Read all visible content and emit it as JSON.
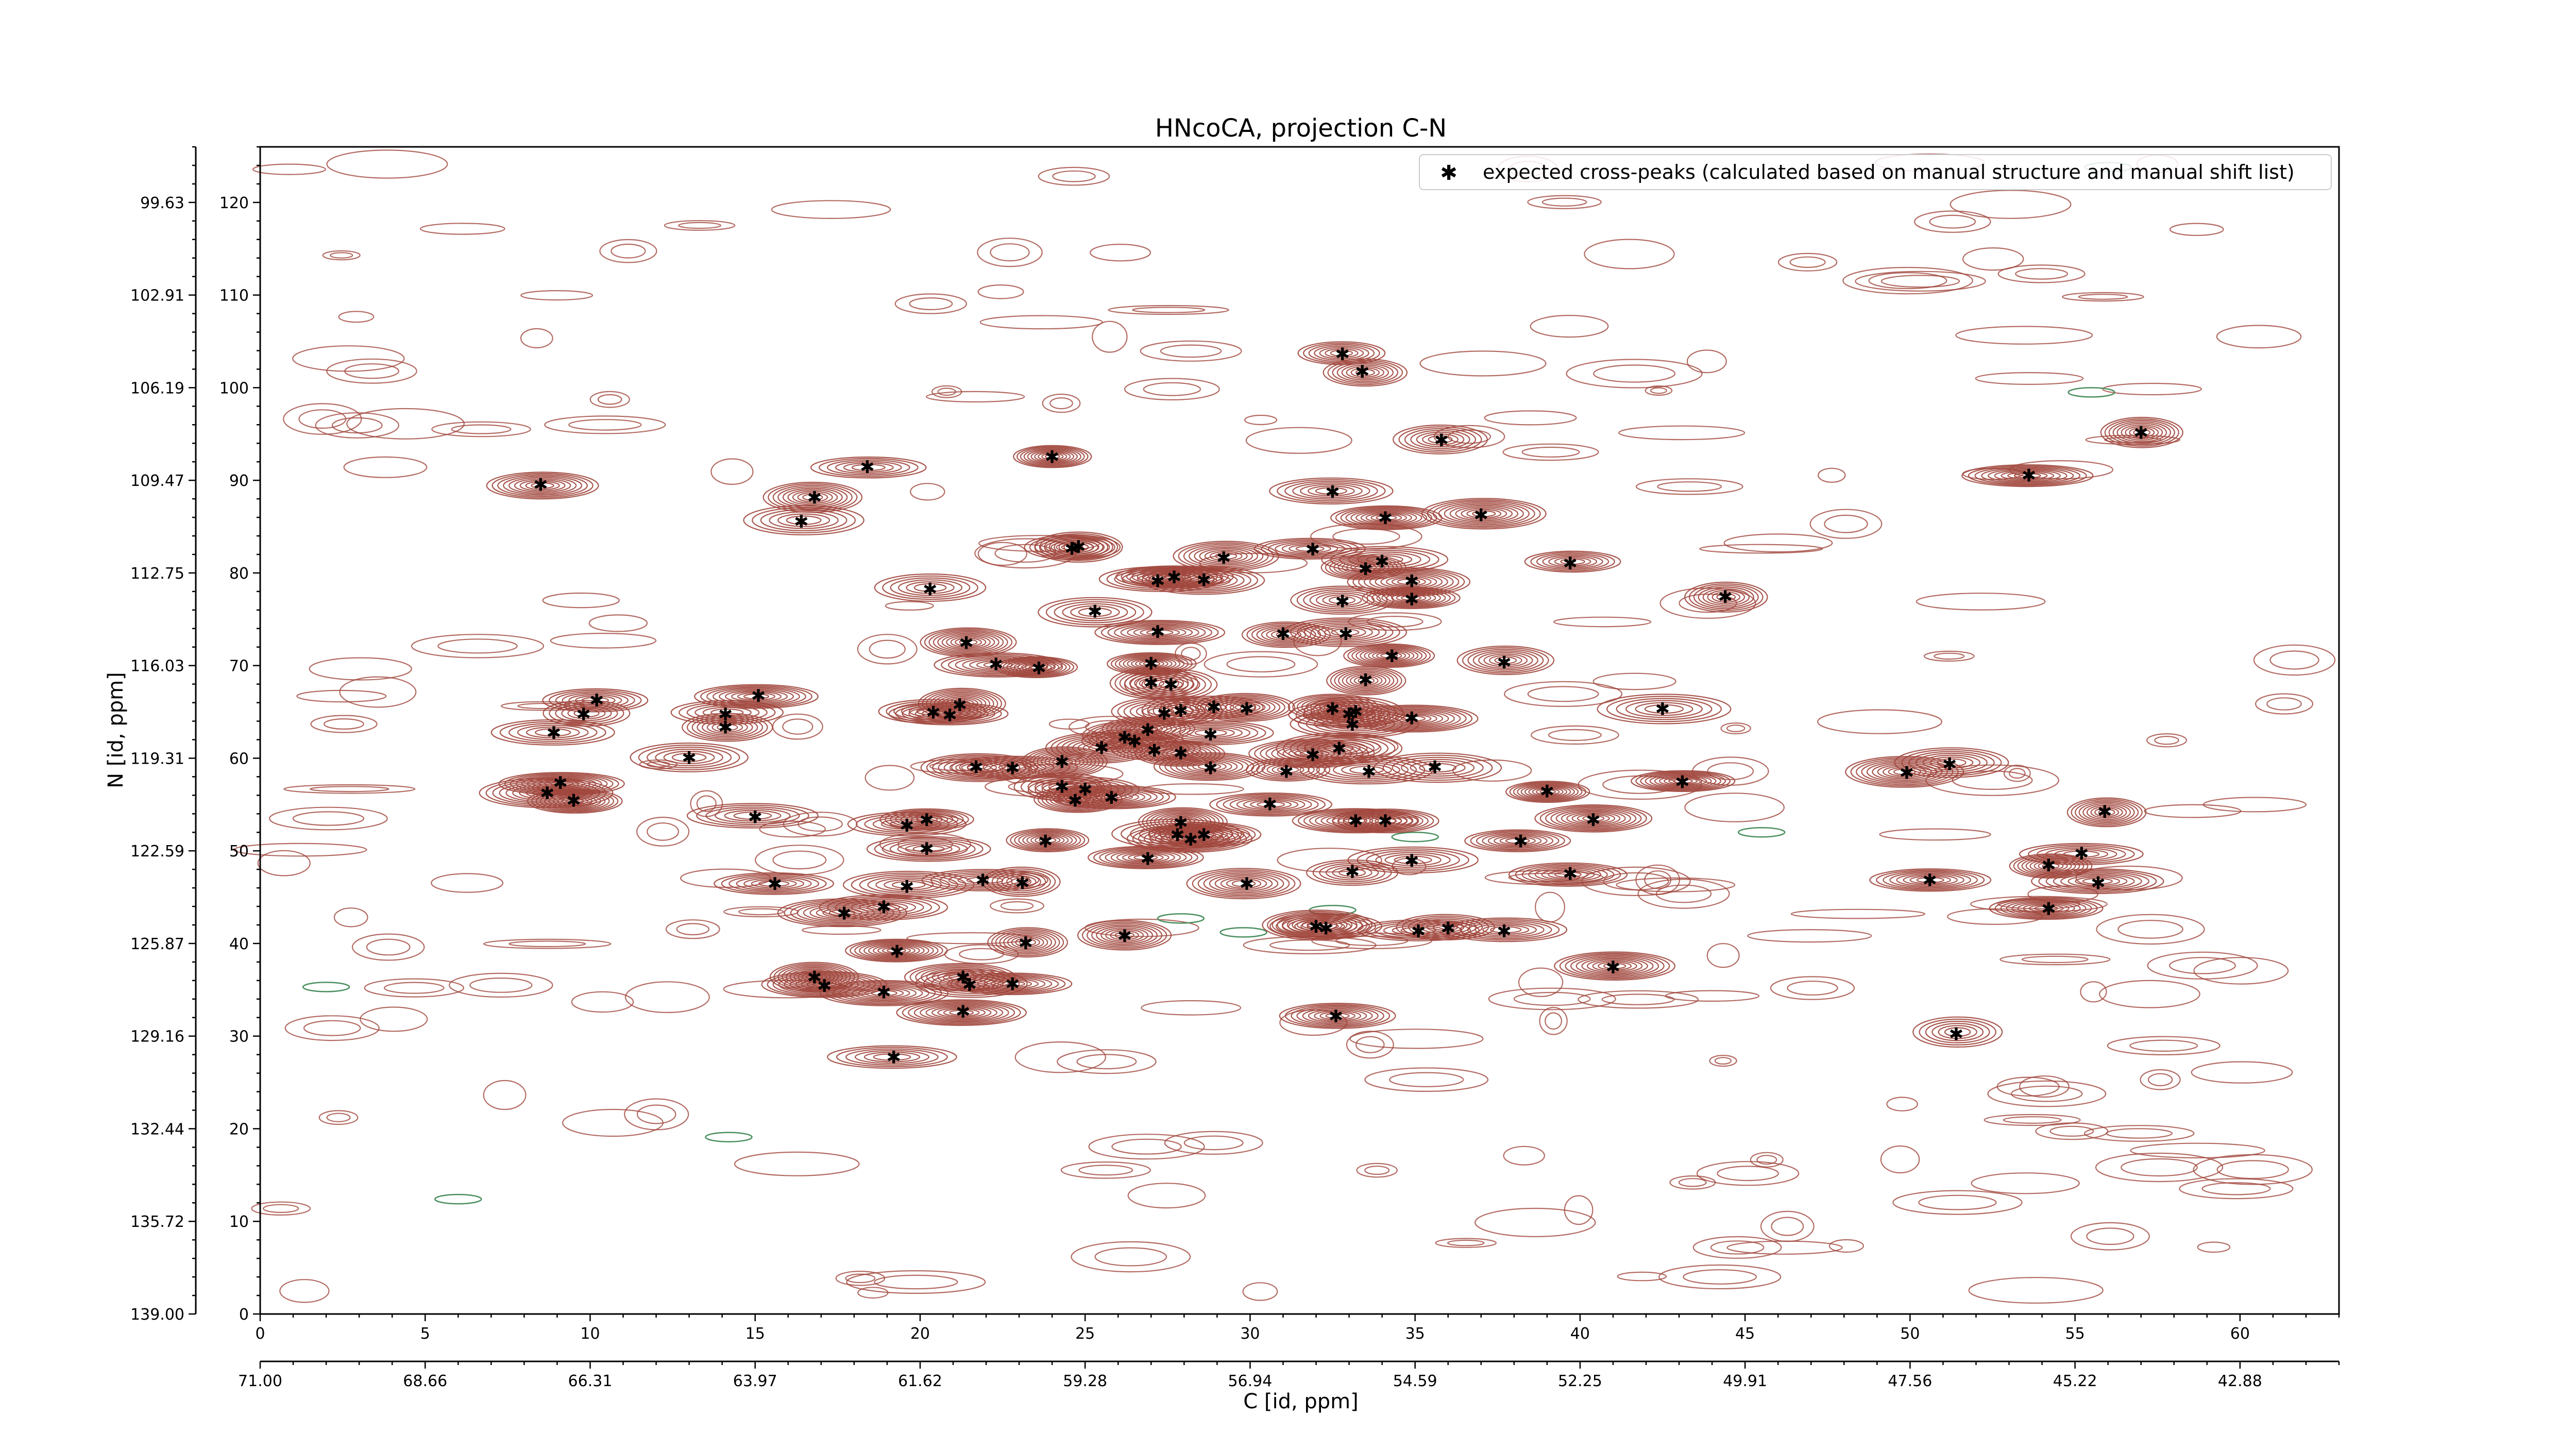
{
  "chart_data": {
    "type": "scatter",
    "title": "HNcoCA, projection C-N",
    "xlabel": "C [id, ppm]",
    "ylabel": "N [id, ppm]",
    "x_index_ticks": [
      "0",
      "5",
      "10",
      "15",
      "20",
      "25",
      "30",
      "35",
      "40",
      "45",
      "50",
      "55",
      "60"
    ],
    "x_ppm_ticks": [
      "71.00",
      "68.66",
      "66.31",
      "63.97",
      "61.62",
      "59.28",
      "56.94",
      "54.59",
      "52.25",
      "49.91",
      "47.56",
      "45.22",
      "42.88"
    ],
    "y_index_ticks": [
      "0",
      "10",
      "20",
      "30",
      "40",
      "50",
      "60",
      "70",
      "80",
      "90",
      "100",
      "110",
      "120"
    ],
    "y_ppm_ticks": [
      "139.00",
      "135.72",
      "132.44",
      "129.16",
      "125.87",
      "122.59",
      "119.31",
      "116.03",
      "112.75",
      "109.47",
      "106.19",
      "102.91",
      "99.63"
    ],
    "xlim": [
      0,
      63
    ],
    "ylim": [
      0,
      126
    ],
    "grid": false,
    "legend_position": "top-right",
    "colors": {
      "marker": "#0000ff",
      "contour_positive": "#a0463c",
      "contour_negative": "#4a8f5e"
    },
    "series": [
      {
        "name": "expected cross-peaks (calculated based on manual structure and manual shift list)",
        "points": [
          [
            8.5,
            89.6
          ],
          [
            16.8,
            88.2
          ],
          [
            16.4,
            85.6
          ],
          [
            18.4,
            91.5
          ],
          [
            24,
            92.6
          ],
          [
            20.3,
            78.3
          ],
          [
            24.6,
            82.7
          ],
          [
            24.8,
            82.9
          ],
          [
            25.3,
            75.9
          ],
          [
            27.2,
            79.2
          ],
          [
            27.7,
            79.6
          ],
          [
            28.6,
            79.3
          ],
          [
            29.2,
            81.7
          ],
          [
            32.5,
            88.8
          ],
          [
            34.1,
            86
          ],
          [
            37,
            86.3
          ],
          [
            33.5,
            80.5
          ],
          [
            34,
            81.3
          ],
          [
            31.9,
            82.6
          ],
          [
            32.8,
            77
          ],
          [
            34.9,
            79.2
          ],
          [
            34.9,
            77.2
          ],
          [
            31,
            73.5
          ],
          [
            32.9,
            73.5
          ],
          [
            34.3,
            71.1
          ],
          [
            33.5,
            68.5
          ],
          [
            37.7,
            70.4
          ],
          [
            39.7,
            81.1
          ],
          [
            44.4,
            77.5
          ],
          [
            35.8,
            94.4
          ],
          [
            32.8,
            103.7
          ],
          [
            33.4,
            101.8
          ],
          [
            57,
            95.2
          ],
          [
            53.6,
            90.6
          ],
          [
            21.4,
            72.5
          ],
          [
            22.3,
            70.2
          ],
          [
            23.6,
            69.8
          ],
          [
            27.2,
            73.7
          ],
          [
            27,
            70.3
          ],
          [
            27,
            68.2
          ],
          [
            27.6,
            68
          ],
          [
            27.4,
            64.9
          ],
          [
            27.9,
            65.2
          ],
          [
            28.9,
            65.6
          ],
          [
            29.9,
            65.4
          ],
          [
            26.9,
            63.1
          ],
          [
            26.2,
            62.3
          ],
          [
            26.5,
            61.9
          ],
          [
            25.5,
            61.2
          ],
          [
            27.1,
            60.9
          ],
          [
            27.9,
            60.6
          ],
          [
            28.8,
            62.6
          ],
          [
            28.8,
            59
          ],
          [
            31.1,
            58.6
          ],
          [
            24.3,
            59.7
          ],
          [
            21.7,
            59.1
          ],
          [
            22.8,
            59
          ],
          [
            20.4,
            65
          ],
          [
            20.9,
            64.7
          ],
          [
            21.2,
            65.8
          ],
          [
            9.8,
            64.8
          ],
          [
            10.2,
            66.3
          ],
          [
            8.9,
            62.8
          ],
          [
            14.1,
            64.8
          ],
          [
            14.1,
            63.4
          ],
          [
            15.1,
            66.8
          ],
          [
            13,
            60.1
          ],
          [
            9.1,
            57.4
          ],
          [
            9.5,
            55.5
          ],
          [
            8.7,
            56.3
          ],
          [
            15,
            53.7
          ],
          [
            19.6,
            52.8
          ],
          [
            20.2,
            53.4
          ],
          [
            20.2,
            50.3
          ],
          [
            23.8,
            51.1
          ],
          [
            24.3,
            57
          ],
          [
            25,
            56.7
          ],
          [
            24.7,
            55.5
          ],
          [
            25.8,
            55.8
          ],
          [
            27.9,
            53.1
          ],
          [
            27.8,
            51.8
          ],
          [
            28.2,
            51.3
          ],
          [
            28.6,
            51.8
          ],
          [
            26.9,
            49.2
          ],
          [
            30.6,
            55.1
          ],
          [
            31.9,
            60.4
          ],
          [
            32.7,
            61.1
          ],
          [
            33,
            64.8
          ],
          [
            33.2,
            65.1
          ],
          [
            32.5,
            65.4
          ],
          [
            33.1,
            63.7
          ],
          [
            34.9,
            64.4
          ],
          [
            33.6,
            58.6
          ],
          [
            35.6,
            59.1
          ],
          [
            33.2,
            53.3
          ],
          [
            34.1,
            53.3
          ],
          [
            34.9,
            49
          ],
          [
            33.1,
            47.8
          ],
          [
            39,
            56.5
          ],
          [
            38.2,
            51.1
          ],
          [
            40.4,
            53.4
          ],
          [
            39.7,
            47.6
          ],
          [
            42.5,
            65.4
          ],
          [
            43.1,
            57.5
          ],
          [
            49.9,
            58.5
          ],
          [
            51.2,
            59.4
          ],
          [
            55.9,
            54.3
          ],
          [
            55.2,
            49.8
          ],
          [
            54.2,
            48.5
          ],
          [
            50.6,
            46.9
          ],
          [
            55.7,
            46.6
          ],
          [
            54.2,
            43.8
          ],
          [
            15.6,
            46.5
          ],
          [
            17.7,
            43.3
          ],
          [
            18.9,
            44
          ],
          [
            19.6,
            46.2
          ],
          [
            21.9,
            46.9
          ],
          [
            23.1,
            46.6
          ],
          [
            29.9,
            46.5
          ],
          [
            32,
            41.9
          ],
          [
            32.3,
            41.7
          ],
          [
            35.1,
            41.4
          ],
          [
            36,
            41.7
          ],
          [
            37.7,
            41.4
          ],
          [
            26.2,
            40.9
          ],
          [
            23.2,
            40.1
          ],
          [
            19.3,
            39.2
          ],
          [
            16.8,
            36.4
          ],
          [
            17.1,
            35.5
          ],
          [
            18.9,
            34.8
          ],
          [
            21.3,
            36.4
          ],
          [
            21.5,
            35.6
          ],
          [
            22.8,
            35.7
          ],
          [
            21.3,
            32.7
          ],
          [
            32.6,
            32.2
          ],
          [
            41,
            37.5
          ],
          [
            51.4,
            30.3
          ],
          [
            19.2,
            27.8
          ]
        ]
      }
    ]
  }
}
